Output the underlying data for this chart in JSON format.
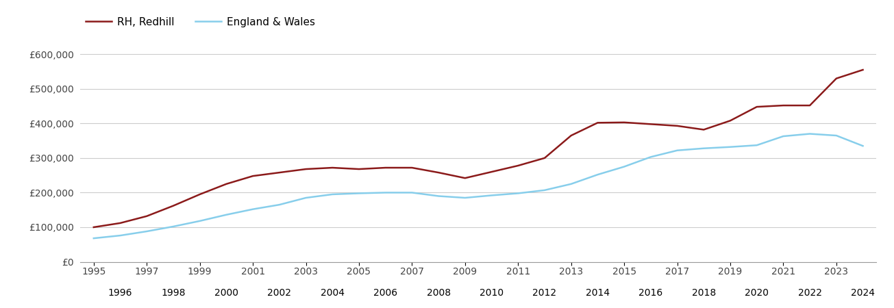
{
  "years": [
    1995,
    1996,
    1997,
    1998,
    1999,
    2000,
    2001,
    2002,
    2003,
    2004,
    2005,
    2006,
    2007,
    2008,
    2009,
    2010,
    2011,
    2012,
    2013,
    2014,
    2015,
    2016,
    2017,
    2018,
    2019,
    2020,
    2021,
    2022,
    2023,
    2024
  ],
  "redhill": [
    100000,
    112000,
    132000,
    162000,
    195000,
    225000,
    248000,
    258000,
    268000,
    272000,
    268000,
    272000,
    272000,
    258000,
    242000,
    260000,
    278000,
    300000,
    365000,
    402000,
    403000,
    398000,
    393000,
    382000,
    408000,
    448000,
    452000,
    452000,
    530000,
    555000
  ],
  "england_wales": [
    68000,
    76000,
    88000,
    102000,
    118000,
    136000,
    152000,
    165000,
    185000,
    195000,
    198000,
    200000,
    200000,
    190000,
    185000,
    192000,
    198000,
    207000,
    225000,
    252000,
    275000,
    303000,
    322000,
    328000,
    332000,
    337000,
    363000,
    370000,
    365000,
    335000
  ],
  "redhill_color": "#8b1a1a",
  "ew_color": "#87ceeb",
  "legend_labels": [
    "RH, Redhill",
    "England & Wales"
  ],
  "ylim": [
    0,
    650000
  ],
  "yticks": [
    0,
    100000,
    200000,
    300000,
    400000,
    500000,
    600000
  ],
  "ytick_labels": [
    "£0",
    "£100,000",
    "£200,000",
    "£300,000",
    "£400,000",
    "£500,000",
    "£600,000"
  ],
  "grid_color": "#cccccc",
  "bg_color": "#ffffff",
  "line_width": 1.8,
  "x_major_ticks": [
    1995,
    1997,
    1999,
    2001,
    2003,
    2005,
    2007,
    2009,
    2011,
    2013,
    2015,
    2017,
    2019,
    2021,
    2023
  ],
  "x_minor_ticks": [
    1996,
    1998,
    2000,
    2002,
    2004,
    2006,
    2008,
    2010,
    2012,
    2014,
    2016,
    2018,
    2020,
    2022,
    2024
  ]
}
